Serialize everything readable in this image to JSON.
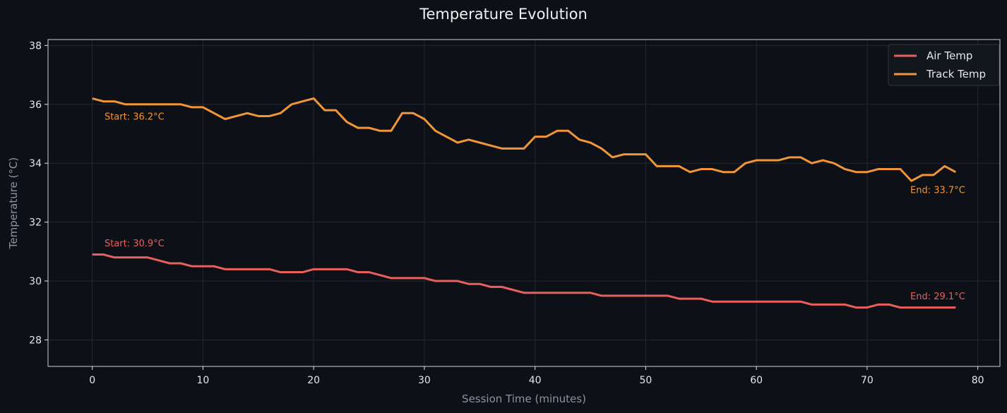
{
  "chart_data": {
    "type": "line",
    "title": "Temperature Evolution",
    "xlabel": "Session Time (minutes)",
    "ylabel": "Temperature (°C)",
    "xlim": [
      -4,
      82
    ],
    "ylim": [
      27.1,
      38.2
    ],
    "xticks": [
      0,
      10,
      20,
      30,
      40,
      50,
      60,
      70,
      80
    ],
    "yticks": [
      28,
      30,
      32,
      34,
      36,
      38
    ],
    "grid": true,
    "legend_position": "top-right",
    "x": [
      0,
      1,
      2,
      3,
      4,
      5,
      6,
      7,
      8,
      9,
      10,
      11,
      12,
      13,
      14,
      15,
      16,
      17,
      18,
      19,
      20,
      21,
      22,
      23,
      24,
      25,
      26,
      27,
      28,
      29,
      30,
      31,
      32,
      33,
      34,
      35,
      36,
      37,
      38,
      39,
      40,
      41,
      42,
      43,
      44,
      45,
      46,
      47,
      48,
      49,
      50,
      51,
      52,
      53,
      54,
      55,
      56,
      57,
      58,
      59,
      60,
      61,
      62,
      63,
      64,
      65,
      66,
      67,
      68,
      69,
      70,
      71,
      72,
      73,
      74,
      75,
      76,
      77,
      78
    ],
    "series": [
      {
        "name": "Air Temp",
        "color": "#e8605c",
        "values": [
          30.9,
          30.9,
          30.8,
          30.8,
          30.8,
          30.8,
          30.7,
          30.6,
          30.6,
          30.5,
          30.5,
          30.5,
          30.4,
          30.4,
          30.4,
          30.4,
          30.4,
          30.3,
          30.3,
          30.3,
          30.4,
          30.4,
          30.4,
          30.4,
          30.3,
          30.3,
          30.2,
          30.1,
          30.1,
          30.1,
          30.1,
          30.0,
          30.0,
          30.0,
          29.9,
          29.9,
          29.8,
          29.8,
          29.7,
          29.6,
          29.6,
          29.6,
          29.6,
          29.6,
          29.6,
          29.6,
          29.5,
          29.5,
          29.5,
          29.5,
          29.5,
          29.5,
          29.5,
          29.4,
          29.4,
          29.4,
          29.3,
          29.3,
          29.3,
          29.3,
          29.3,
          29.3,
          29.3,
          29.3,
          29.3,
          29.2,
          29.2,
          29.2,
          29.2,
          29.1,
          29.1,
          29.2,
          29.2,
          29.1,
          29.1,
          29.1,
          29.1,
          29.1,
          29.1
        ],
        "annotations": [
          {
            "text": "Start: 30.9°C",
            "x": 1.1,
            "y": 31.3
          },
          {
            "text": "End: 29.1°C",
            "x": 73.9,
            "y": 29.5
          }
        ]
      },
      {
        "name": "Track Temp",
        "color": "#f0953a",
        "values": [
          36.2,
          36.1,
          36.1,
          36.0,
          36.0,
          36.0,
          36.0,
          36.0,
          36.0,
          35.9,
          35.9,
          35.7,
          35.5,
          35.6,
          35.7,
          35.6,
          35.6,
          35.7,
          36.0,
          36.1,
          36.2,
          35.8,
          35.8,
          35.4,
          35.2,
          35.2,
          35.1,
          35.1,
          35.7,
          35.7,
          35.5,
          35.1,
          34.9,
          34.7,
          34.8,
          34.7,
          34.6,
          34.5,
          34.5,
          34.5,
          34.9,
          34.9,
          35.1,
          35.1,
          34.8,
          34.7,
          34.5,
          34.2,
          34.3,
          34.3,
          34.3,
          33.9,
          33.9,
          33.9,
          33.7,
          33.8,
          33.8,
          33.7,
          33.7,
          34.0,
          34.1,
          34.1,
          34.1,
          34.2,
          34.2,
          34.0,
          34.1,
          34.0,
          33.8,
          33.7,
          33.7,
          33.8,
          33.8,
          33.8,
          33.4,
          33.6,
          33.6,
          33.9,
          33.7
        ],
        "annotations": [
          {
            "text": "Start: 36.2°C",
            "x": 1.1,
            "y": 35.6
          },
          {
            "text": "End: 33.7°C",
            "x": 73.9,
            "y": 33.1
          }
        ]
      }
    ]
  }
}
